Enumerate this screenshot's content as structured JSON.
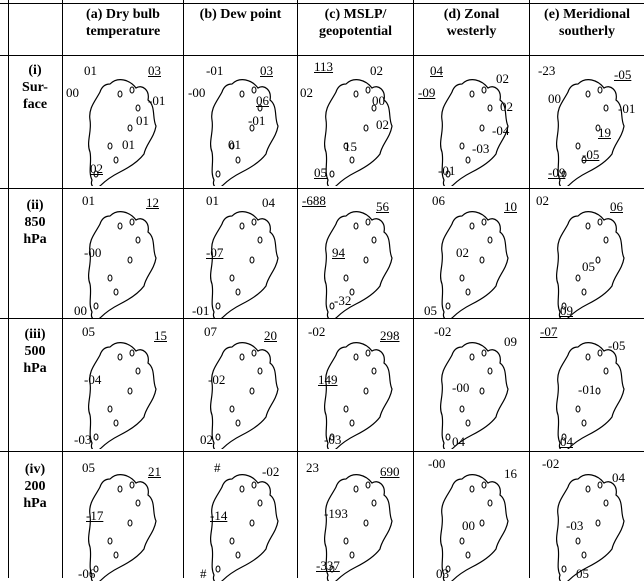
{
  "columns": [
    {
      "line1": "(a) Dry bulb",
      "line2": "temperature"
    },
    {
      "line1": "(b) Dew point",
      "line2": ""
    },
    {
      "line1": "(c) MSLP/",
      "line2": "geopotential"
    },
    {
      "line1": "(d) Zonal",
      "line2": "westerly"
    },
    {
      "line1": "(e) Meridional",
      "line2": "southerly"
    }
  ],
  "rows": [
    {
      "num": "(i)",
      "line2": "Sur-",
      "line3": "face"
    },
    {
      "num": "(ii)",
      "line2": "850",
      "line3": "hPa"
    },
    {
      "num": "(iii)",
      "line2": "500",
      "line3": "hPa"
    },
    {
      "num": "(iv)",
      "line2": "200",
      "line3": "hPa"
    }
  ],
  "cells": [
    [
      [
        "01",
        "03",
        "00",
        "-01",
        "01",
        "01",
        "02"
      ],
      [
        "-01",
        "03",
        "-00",
        "06",
        "-01",
        "01"
      ],
      [
        "113",
        "02",
        "02",
        "00",
        "02",
        "15",
        "05"
      ],
      [
        "04",
        "02",
        "-09",
        "02",
        "-04",
        "-03",
        "-01"
      ],
      [
        "-23",
        "-05",
        "00",
        "-01",
        "19",
        "-05",
        "-09"
      ]
    ],
    [
      [
        "01",
        "12",
        "-00",
        "00"
      ],
      [
        "01",
        "04",
        "-07",
        "-01"
      ],
      [
        "-688",
        "56",
        "94",
        "-32"
      ],
      [
        "06",
        "10",
        "02",
        "05"
      ],
      [
        "02",
        "06",
        "05",
        "09"
      ]
    ],
    [
      [
        "05",
        "15",
        "-04",
        "-03"
      ],
      [
        "07",
        "20",
        "-02",
        "02"
      ],
      [
        "-02",
        "298",
        "149",
        "-03"
      ],
      [
        "-02",
        "09",
        "-00",
        "04"
      ],
      [
        "-07",
        "-05",
        "-01",
        "04"
      ]
    ],
    [
      [
        "05",
        "21",
        "-17",
        "-06"
      ],
      [
        "#",
        "-02",
        "-14",
        "#"
      ],
      [
        "23",
        "690",
        "-193",
        "-337"
      ],
      [
        "-00",
        "16",
        "00",
        "03"
      ],
      [
        "-02",
        "04",
        "-03",
        "05"
      ]
    ]
  ]
}
